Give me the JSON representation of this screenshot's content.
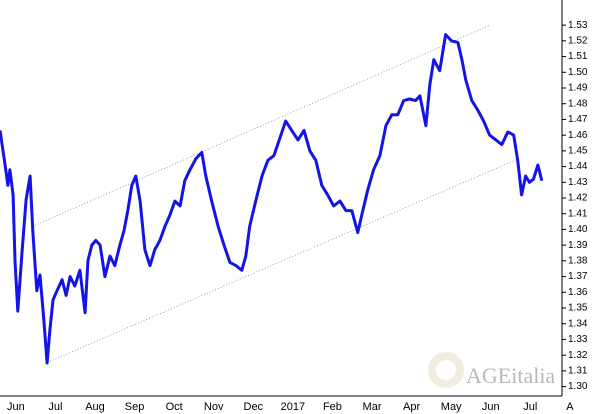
{
  "chart_data": {
    "type": "line",
    "color": "#1414e6",
    "x": [
      0.1,
      0.23,
      0.3,
      0.35,
      0.43,
      0.48,
      0.55,
      0.66,
      0.76,
      0.86,
      0.93,
      1.03,
      1.11,
      1.21,
      1.29,
      1.36,
      1.44,
      1.54,
      1.67,
      1.77,
      1.87,
      1.99,
      2.12,
      2.25,
      2.32,
      2.42,
      2.52,
      2.63,
      2.75,
      2.88,
      3.0,
      3.13,
      3.23,
      3.33,
      3.43,
      3.53,
      3.64,
      3.76,
      3.89,
      4.01,
      4.14,
      4.27,
      4.39,
      4.52,
      4.65,
      4.77,
      4.9,
      5.05,
      5.2,
      5.3,
      5.45,
      5.61,
      5.76,
      5.91,
      6.06,
      6.21,
      6.31,
      6.41,
      6.56,
      6.72,
      6.87,
      7.02,
      7.17,
      7.32,
      7.47,
      7.63,
      7.78,
      7.93,
      8.08,
      8.23,
      8.38,
      8.53,
      8.69,
      8.84,
      8.99,
      9.14,
      9.24,
      9.39,
      9.54,
      9.7,
      9.85,
      10.0,
      10.15,
      10.3,
      10.45,
      10.6,
      10.71,
      10.86,
      10.96,
      11.06,
      11.21,
      11.36,
      11.51,
      11.67,
      11.77,
      11.87,
      12.02,
      12.17,
      12.32,
      12.47,
      12.63,
      12.78,
      12.93,
      13.08,
      13.18,
      13.28,
      13.38,
      13.48,
      13.58,
      13.69,
      13.79
    ],
    "values": [
      1.463,
      1.441,
      1.428,
      1.438,
      1.422,
      1.38,
      1.348,
      1.387,
      1.419,
      1.434,
      1.399,
      1.361,
      1.371,
      1.342,
      1.315,
      1.336,
      1.355,
      1.361,
      1.368,
      1.358,
      1.37,
      1.364,
      1.374,
      1.347,
      1.38,
      1.39,
      1.393,
      1.39,
      1.37,
      1.383,
      1.377,
      1.39,
      1.399,
      1.412,
      1.428,
      1.434,
      1.418,
      1.387,
      1.377,
      1.387,
      1.393,
      1.402,
      1.409,
      1.418,
      1.415,
      1.431,
      1.438,
      1.445,
      1.449,
      1.434,
      1.418,
      1.402,
      1.39,
      1.379,
      1.377,
      1.374,
      1.383,
      1.402,
      1.418,
      1.434,
      1.444,
      1.447,
      1.458,
      1.469,
      1.463,
      1.457,
      1.463,
      1.45,
      1.444,
      1.428,
      1.422,
      1.415,
      1.418,
      1.412,
      1.412,
      1.398,
      1.409,
      1.425,
      1.438,
      1.447,
      1.466,
      1.473,
      1.473,
      1.482,
      1.483,
      1.482,
      1.485,
      1.466,
      1.492,
      1.508,
      1.501,
      1.524,
      1.52,
      1.519,
      1.508,
      1.495,
      1.482,
      1.476,
      1.469,
      1.46,
      1.457,
      1.454,
      1.462,
      1.46,
      1.444,
      1.422,
      1.434,
      1.43,
      1.432,
      1.441,
      1.431
    ],
    "trendlines": [
      {
        "x": [
          0.98,
          12.47
        ],
        "values": [
          1.4025,
          1.5299
        ]
      },
      {
        "x": [
          1.29,
          13.23
        ],
        "values": [
          1.3153,
          1.4453
        ]
      }
    ],
    "xlim": [
      0.1,
      14.3
    ],
    "xticks": [
      {
        "value": 0.5,
        "label": "Jun"
      },
      {
        "value": 1.5,
        "label": "Jul"
      },
      {
        "value": 2.5,
        "label": "Aug"
      },
      {
        "value": 3.5,
        "label": "Sep"
      },
      {
        "value": 4.5,
        "label": "Oct"
      },
      {
        "value": 5.5,
        "label": "Nov"
      },
      {
        "value": 6.5,
        "label": "Dec"
      },
      {
        "value": 7.5,
        "label": "2017"
      },
      {
        "value": 8.5,
        "label": "Feb"
      },
      {
        "value": 9.5,
        "label": "Mar"
      },
      {
        "value": 10.5,
        "label": "Apr"
      },
      {
        "value": 11.5,
        "label": "May"
      },
      {
        "value": 12.5,
        "label": "Jun"
      },
      {
        "value": 13.5,
        "label": "Jul"
      },
      {
        "value": 14.5,
        "label": "A"
      }
    ],
    "ylim": [
      1.294,
      1.546
    ],
    "yticks": [
      {
        "value": 1.3,
        "label": "1.30"
      },
      1.31,
      1.32,
      1.33,
      1.34,
      1.35,
      1.36,
      1.37,
      1.38,
      1.39,
      {
        "value": 1.4,
        "label": "1.40"
      },
      1.41,
      1.42,
      1.43,
      1.44,
      1.45,
      1.46,
      1.47,
      1.48,
      1.49,
      {
        "value": 1.5,
        "label": "1.50"
      },
      1.51,
      1.52,
      1.53
    ],
    "watermark": "AGEitalia"
  }
}
